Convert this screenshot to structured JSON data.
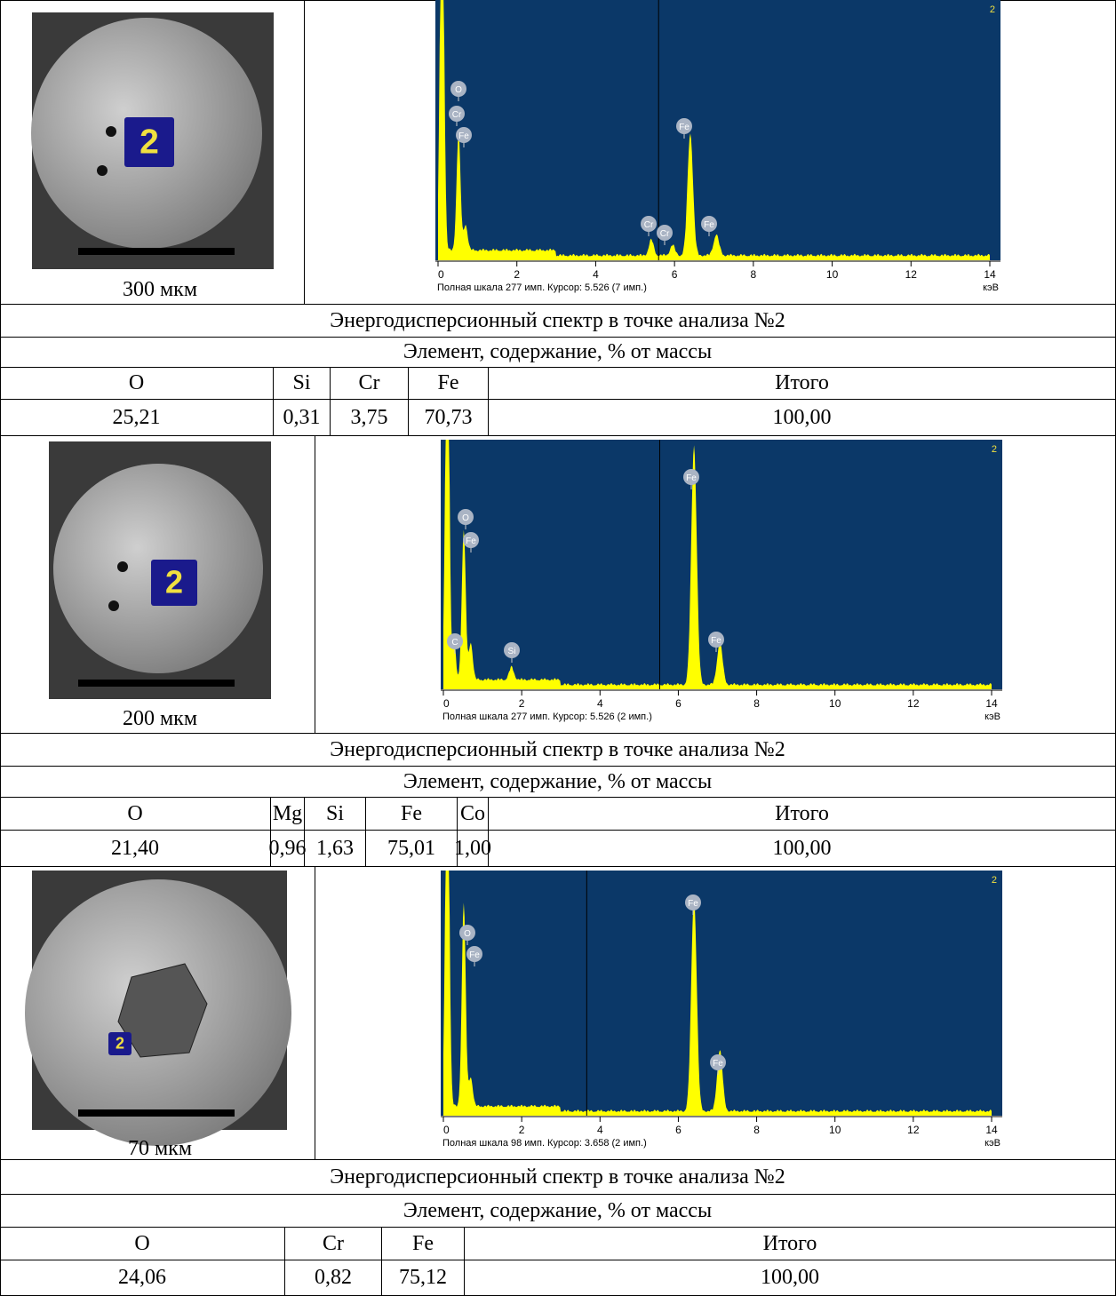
{
  "blocks": [
    {
      "photo": {
        "marker": "2",
        "scale": "300 мкм"
      },
      "spectrum": {
        "index": "2",
        "peaks": [
          "O",
          "Cr",
          "Fe",
          "Cr",
          "Cr",
          "Fe",
          "Fe"
        ],
        "ticks": [
          "0",
          "2",
          "4",
          "6",
          "8",
          "10",
          "12",
          "14"
        ],
        "status": "Полная шкала 277 имп. Курсор: 5.526  (7 имп.)",
        "unit": "кэВ"
      },
      "caption": "Энергодисперсионный спектр в точке анализа №2",
      "subheader": "Элемент, содержание, % от массы",
      "header": [
        "O",
        "Si",
        "Cr",
        "Fe",
        "Итого"
      ],
      "values": [
        "25,21",
        "0,31",
        "3,75",
        "70,73",
        "100,00"
      ]
    },
    {
      "photo": {
        "marker": "2",
        "scale": "200 мкм"
      },
      "spectrum": {
        "index": "2",
        "peaks": [
          "Fe",
          "O",
          "Fe",
          "Fe",
          "C",
          "Si"
        ],
        "ticks": [
          "0",
          "2",
          "4",
          "6",
          "8",
          "10",
          "12",
          "14"
        ],
        "status": "Полная шкала 277 имп. Курсор: 5.526  (2 имп.)",
        "unit": "кэВ"
      },
      "caption": "Энергодисперсионный спектр в точке анализа №2",
      "subheader": "Элемент, содержание, % от массы",
      "header": [
        "O",
        "Mg",
        "Si",
        "Fe",
        "Co",
        "Итого"
      ],
      "values": [
        "21,40",
        "0,96",
        "1,63",
        "75,01",
        "1,00",
        "100,00"
      ]
    },
    {
      "photo": {
        "marker": "2",
        "scale": "70 мкм"
      },
      "spectrum": {
        "index": "2",
        "peaks": [
          "O",
          "Fe",
          "Fe",
          "Fe"
        ],
        "ticks": [
          "0",
          "2",
          "4",
          "6",
          "8",
          "10",
          "12",
          "14"
        ],
        "status": "Полная шкала 98 имп. Курсор: 3.658  (2 имп.)",
        "unit": "кэВ"
      },
      "caption": "Энергодисперсионный спектр в точке анализа №2",
      "subheader": "Элемент, содержание, % от массы",
      "header": [
        "O",
        "Cr",
        "Fe",
        "Итого"
      ],
      "values": [
        "24,06",
        "0,82",
        "75,12",
        "100,00"
      ]
    }
  ]
}
